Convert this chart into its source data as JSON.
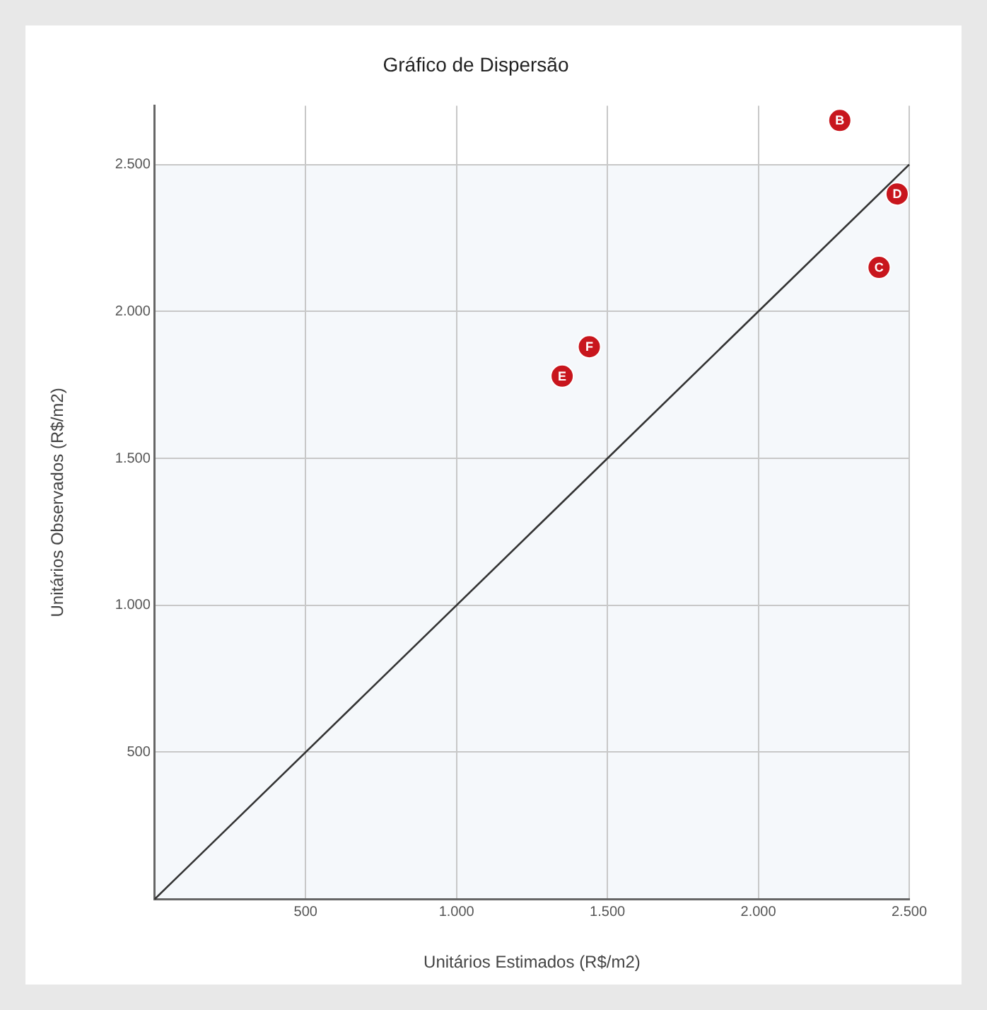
{
  "chart_data": {
    "type": "scatter",
    "title": "Gráfico de Dispersão",
    "xlabel": "Unitários Estimados (R$/m2)",
    "ylabel": "Unitários Observados (R$/m2)",
    "xlim": [
      0,
      2500
    ],
    "ylim": [
      0,
      2700
    ],
    "xticks": [
      500,
      {
        "value": 1000,
        "label": "1.000"
      },
      {
        "value": 1500,
        "label": "1.500"
      },
      {
        "value": 2000,
        "label": "2.000"
      },
      {
        "value": 2500,
        "label": "2.500"
      }
    ],
    "yticks": [
      500,
      {
        "value": 1000,
        "label": "1.000"
      },
      {
        "value": 1500,
        "label": "1.500"
      },
      {
        "value": 2000,
        "label": "2.000"
      },
      {
        "value": 2500,
        "label": "2.500"
      }
    ],
    "grid": true,
    "series": [
      {
        "marker": "circle",
        "color": "#c8161d",
        "x": [
          2270,
          2400,
          2460,
          1350,
          1440
        ],
        "values": [
          2650,
          2150,
          2400,
          1780,
          1880
        ]
      },
      {
        "type": "line",
        "marker": "none",
        "color": "#333333",
        "x": [
          0,
          2500
        ],
        "values": [
          0,
          2500
        ]
      }
    ],
    "annotations": [
      {
        "text": "B",
        "x": 2270,
        "y": 2650
      },
      {
        "text": "C",
        "x": 2400,
        "y": 2150
      },
      {
        "text": "D",
        "x": 2460,
        "y": 2400
      },
      {
        "text": "E",
        "x": 1350,
        "y": 1780
      },
      {
        "text": "F",
        "x": 1440,
        "y": 1880
      }
    ]
  }
}
